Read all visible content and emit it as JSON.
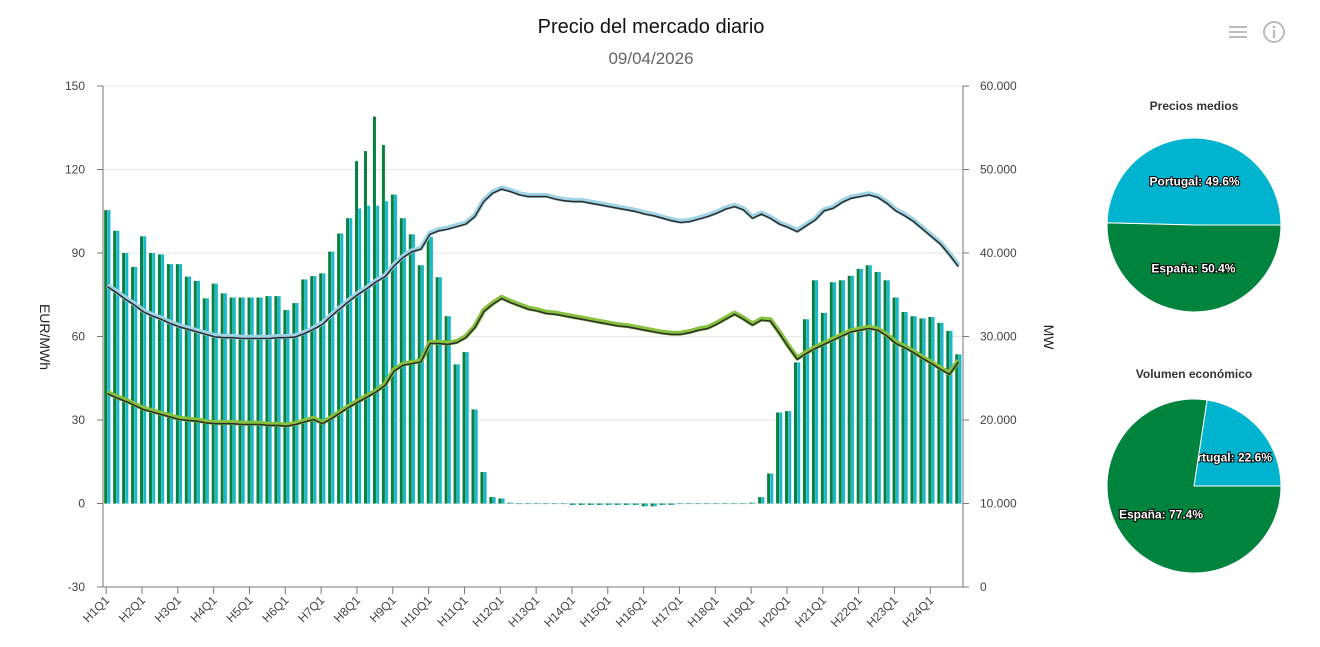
{
  "header": {
    "title": "Precio del mercado diario",
    "subtitle": "09/04/2026",
    "menu_icon": "hamburger-menu-icon",
    "info_icon": "info-circle-icon"
  },
  "colors": {
    "espana": "#0a8040",
    "portugal": "#19b9cc",
    "line_a": "#9fd3e6",
    "line_b": "#86c23c",
    "pie_espana": "#00843d",
    "pie_portugal": "#00b3cf"
  },
  "chart_data": [
    {
      "type": "bar+line",
      "title": "Precio del mercado diario",
      "subtitle": "09/04/2026",
      "ylabel_left": "EUR/MWh",
      "ylabel_right": "MW",
      "ylim_left": [
        -30,
        150
      ],
      "ylim_right": [
        0,
        60000
      ],
      "yticks_left": [
        "150",
        "120",
        "90",
        "60",
        "30",
        "0",
        "-30"
      ],
      "yticks_right": [
        "60.000",
        "50.000",
        "40.000",
        "30.000",
        "20.000",
        "10.000",
        "0"
      ],
      "x_tick_labels": [
        "H1Q1",
        "H2Q1",
        "H3Q1",
        "H4Q1",
        "H5Q1",
        "H6Q1",
        "H7Q1",
        "H8Q1",
        "H9Q1",
        "H10Q1",
        "H11Q1",
        "H12Q1",
        "H13Q1",
        "H14Q1",
        "H15Q1",
        "H16Q1",
        "H17Q1",
        "H18Q1",
        "H19Q1",
        "H20Q1",
        "H21Q1",
        "H22Q1",
        "H23Q1",
        "H24Q1"
      ],
      "points_per_tick": 4,
      "grid": true,
      "bar_series": [
        {
          "key": "espana",
          "axis": "left",
          "values": [
            105.4,
            98,
            90,
            85,
            96,
            90,
            89.5,
            86,
            86,
            81.5,
            80,
            73.7,
            79,
            75.5,
            74,
            74,
            74,
            74,
            74.5,
            74.5,
            69.5,
            72,
            80.5,
            81.7,
            82.7,
            90.5,
            97,
            102.5,
            123,
            126.6,
            139,
            128.8,
            111,
            102.5,
            96.7,
            85.6,
            95.8,
            81.3,
            67.3,
            50,
            54.4,
            33.8,
            11.3,
            2.3,
            1.8,
            0.3,
            0,
            0,
            0,
            0,
            0,
            0,
            -0.5,
            -0.5,
            -0.5,
            -0.5,
            -0.5,
            -0.5,
            -0.5,
            -0.5,
            -1,
            -1,
            -0.5,
            -0.5,
            0,
            0,
            0,
            0,
            0,
            0,
            0,
            0,
            0.3,
            2.3,
            10.8,
            32.7,
            33.2,
            50.7,
            66.2,
            80.2,
            68.5,
            79.5,
            80.2,
            81.8,
            84.3,
            85.6,
            83.2,
            80.2,
            74,
            68.8,
            67.3,
            66.5,
            67,
            64.9,
            62,
            53.6
          ]
        },
        {
          "key": "portugal",
          "axis": "left",
          "values": [
            105.4,
            98,
            90,
            85,
            96,
            90,
            89.5,
            86,
            86,
            81.5,
            80,
            73.7,
            79,
            75.5,
            74,
            74,
            74,
            74,
            74.5,
            74.5,
            69.5,
            72,
            80.5,
            81.7,
            82.7,
            90.5,
            97,
            102.5,
            106,
            107,
            107,
            108.6,
            111,
            102.5,
            96.7,
            85.6,
            95.8,
            81.3,
            67.3,
            50,
            54.4,
            33.8,
            11.3,
            2.3,
            1.8,
            0.3,
            0,
            0,
            0,
            0,
            0,
            0,
            -0.5,
            -0.5,
            -0.5,
            -0.5,
            -0.5,
            -0.5,
            -0.5,
            -0.5,
            -1,
            -1,
            -0.5,
            -0.5,
            0,
            0,
            0,
            0,
            0,
            0,
            0,
            0,
            0.3,
            2.3,
            10.8,
            32.7,
            33.2,
            50.7,
            66.2,
            80.2,
            68.5,
            79.5,
            80.2,
            81.8,
            84.3,
            85.6,
            83.2,
            80.2,
            74,
            68.8,
            67.3,
            66.5,
            67,
            64.9,
            62,
            53.6
          ]
        }
      ],
      "line_series": [
        {
          "key": "line_a",
          "axis": "right",
          "values": [
            36100,
            35400,
            34600,
            33900,
            33100,
            32600,
            32200,
            31700,
            31300,
            31000,
            30700,
            30400,
            30100,
            30000,
            30000,
            29900,
            29900,
            29900,
            29900,
            30000,
            30000,
            30100,
            30500,
            31000,
            31600,
            32600,
            33500,
            34400,
            35200,
            35900,
            36700,
            37300,
            38600,
            39600,
            40300,
            40600,
            42400,
            42800,
            43000,
            43300,
            43600,
            44500,
            46300,
            47300,
            47800,
            47500,
            47100,
            46900,
            46900,
            46900,
            46600,
            46400,
            46300,
            46300,
            46100,
            45900,
            45700,
            45500,
            45300,
            45100,
            44800,
            44600,
            44300,
            44000,
            43800,
            43900,
            44200,
            44500,
            44900,
            45400,
            45700,
            45300,
            44300,
            44800,
            44300,
            43600,
            43200,
            42700,
            43400,
            44100,
            45200,
            45500,
            46200,
            46700,
            46900,
            47100,
            46800,
            46100,
            45200,
            44600,
            43900,
            43000,
            42100,
            41200,
            39900,
            38500
          ]
        },
        {
          "key": "line_b",
          "axis": "right",
          "values": [
            23300,
            22800,
            22400,
            21900,
            21400,
            21100,
            20800,
            20500,
            20200,
            20100,
            20000,
            19800,
            19700,
            19700,
            19700,
            19600,
            19600,
            19600,
            19500,
            19500,
            19400,
            19600,
            19900,
            20200,
            19700,
            20300,
            21000,
            21700,
            22300,
            22900,
            23500,
            24300,
            26000,
            26700,
            26900,
            27100,
            29300,
            29300,
            29200,
            29400,
            30000,
            31200,
            33100,
            34000,
            34700,
            34200,
            33800,
            33400,
            33200,
            32900,
            32800,
            32600,
            32400,
            32200,
            32000,
            31800,
            31600,
            31400,
            31300,
            31100,
            30900,
            30700,
            30500,
            30400,
            30400,
            30600,
            30900,
            31100,
            31600,
            32200,
            32800,
            32200,
            31500,
            32100,
            32000,
            30500,
            28900,
            27400,
            28100,
            28700,
            29200,
            29700,
            30200,
            30700,
            30900,
            31100,
            30900,
            30200,
            29300,
            28800,
            28200,
            27500,
            26900,
            26200,
            25600,
            27100
          ]
        }
      ]
    },
    {
      "type": "pie",
      "title": "Precios medios",
      "slices": [
        {
          "key": "portugal",
          "label": "Portugal: 49.6%",
          "value": 49.6
        },
        {
          "key": "espana",
          "label": "España: 50.4%",
          "value": 50.4
        }
      ]
    },
    {
      "type": "pie",
      "title": "Volumen económico",
      "slices": [
        {
          "key": "portugal",
          "label": "Portugal: 22.6%",
          "value": 22.6
        },
        {
          "key": "espana",
          "label": "España: 77.4%",
          "value": 77.4
        }
      ]
    }
  ]
}
